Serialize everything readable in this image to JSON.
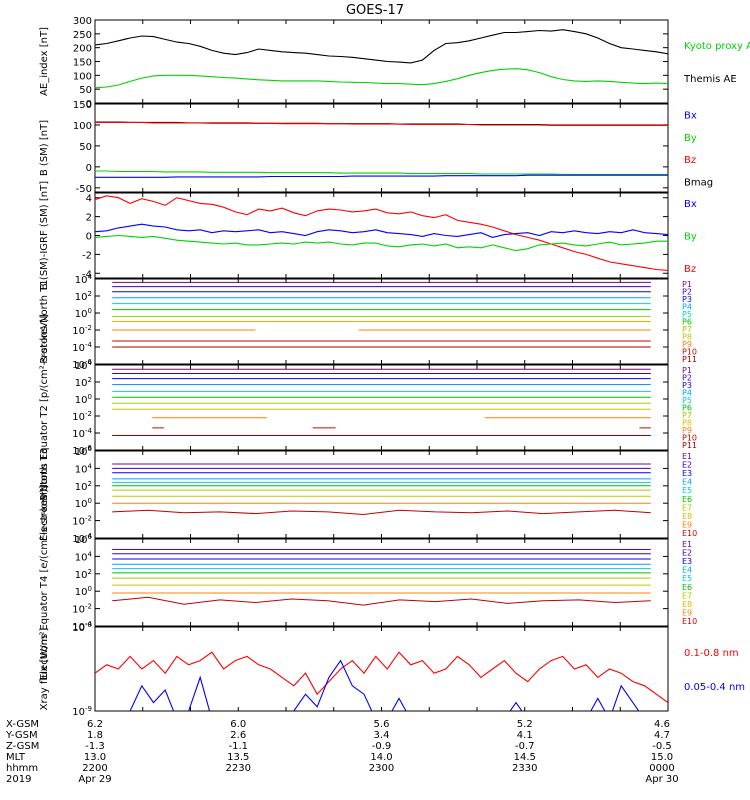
{
  "title": "GOES-17",
  "colors": {
    "black": "#000000",
    "green": "#00d400",
    "blue": "#0000ff",
    "red": "#ff0000",
    "ch": [
      "#000000",
      "#7f007f",
      "#3f00bf",
      "#0000ff",
      "#00a0ff",
      "#00d0d0",
      "#00c000",
      "#a0d000",
      "#d0c000",
      "#ff8000",
      "#d00000",
      "#a00000"
    ]
  },
  "chart_data": [
    {
      "type": "line",
      "id": "ae",
      "ylabel": "AE_index [nT]",
      "ylim": [
        0,
        300
      ],
      "yticks": [
        "300",
        "250",
        "200",
        "150",
        "100",
        "50",
        "0"
      ],
      "ytick_values": [
        300,
        250,
        200,
        150,
        100,
        50,
        0
      ],
      "legend": [
        "Kyoto proxy AE",
        "Themis AE"
      ],
      "series": [
        {
          "name": "Kyoto proxy AE",
          "color": "green",
          "values": [
            55,
            58,
            65,
            78,
            90,
            98,
            100,
            100,
            100,
            98,
            95,
            92,
            90,
            87,
            84,
            82,
            80,
            80,
            80,
            80,
            78,
            76,
            75,
            74,
            72,
            70,
            70,
            68,
            66,
            70,
            78,
            88,
            100,
            110,
            118,
            122,
            124,
            120,
            110,
            95,
            85,
            80,
            78,
            80,
            78,
            75,
            72,
            70,
            72,
            70
          ]
        },
        {
          "name": "Themis AE",
          "color": "black",
          "values": [
            210,
            215,
            225,
            235,
            242,
            240,
            230,
            220,
            215,
            205,
            190,
            180,
            175,
            182,
            195,
            190,
            185,
            182,
            180,
            175,
            170,
            168,
            165,
            160,
            155,
            150,
            148,
            145,
            155,
            190,
            215,
            218,
            225,
            235,
            245,
            255,
            255,
            258,
            262,
            260,
            265,
            258,
            250,
            235,
            215,
            200,
            195,
            190,
            185,
            178
          ]
        }
      ]
    },
    {
      "type": "line",
      "id": "bsm",
      "ylabel": "B (SM) [nT]",
      "ylim": [
        -60,
        150
      ],
      "yticks": [
        "150",
        "100",
        "50",
        "0",
        "-50"
      ],
      "ytick_values": [
        150,
        100,
        50,
        0,
        -50
      ],
      "legend": [
        "Bx",
        "By",
        "Bz",
        "Bmag"
      ],
      "series": [
        {
          "name": "Bmag",
          "color": "black",
          "values": [
            107,
            107,
            107,
            106,
            106,
            106,
            106,
            106,
            105,
            105,
            105,
            105,
            105,
            105,
            104,
            104,
            104,
            104,
            104,
            104,
            103,
            103,
            103,
            103,
            103,
            103,
            102,
            102,
            102,
            102,
            102,
            102,
            101,
            101,
            101,
            101,
            101,
            101,
            101,
            100,
            100,
            100,
            100,
            100,
            100,
            100,
            100,
            100,
            100,
            100
          ]
        },
        {
          "name": "Bz",
          "color": "red",
          "values": [
            106,
            106,
            106,
            106,
            106,
            105,
            105,
            105,
            105,
            105,
            104,
            104,
            104,
            104,
            104,
            104,
            103,
            103,
            103,
            103,
            103,
            103,
            102,
            102,
            102,
            102,
            102,
            101,
            101,
            101,
            101,
            101,
            101,
            100,
            100,
            100,
            100,
            100,
            100,
            99,
            99,
            99,
            99,
            99,
            99,
            99,
            99,
            99,
            99,
            99
          ]
        },
        {
          "name": "By",
          "color": "green",
          "values": [
            -10,
            -10,
            -11,
            -11,
            -11,
            -11,
            -12,
            -12,
            -12,
            -12,
            -13,
            -13,
            -13,
            -13,
            -13,
            -14,
            -14,
            -14,
            -14,
            -14,
            -14,
            -15,
            -15,
            -15,
            -15,
            -15,
            -15,
            -16,
            -16,
            -16,
            -16,
            -16,
            -16,
            -17,
            -17,
            -17,
            -17,
            -17,
            -17,
            -17,
            -18,
            -18,
            -18,
            -18,
            -18,
            -18,
            -18,
            -18,
            -18,
            -18
          ]
        },
        {
          "name": "Bx",
          "color": "blue",
          "values": [
            -25,
            -25,
            -25,
            -25,
            -25,
            -25,
            -25,
            -24,
            -24,
            -24,
            -24,
            -24,
            -24,
            -24,
            -24,
            -23,
            -23,
            -23,
            -23,
            -23,
            -23,
            -23,
            -22,
            -22,
            -22,
            -22,
            -22,
            -22,
            -22,
            -22,
            -21,
            -21,
            -21,
            -21,
            -21,
            -21,
            -21,
            -20,
            -20,
            -20,
            -20,
            -20,
            -20,
            -20,
            -20,
            -20,
            -20,
            -20,
            -20,
            -20
          ]
        }
      ]
    },
    {
      "type": "line",
      "id": "bigrf",
      "ylabel": "B (SM)-IGRF (SM) [nT]",
      "ylim": [
        -4.5,
        4.5
      ],
      "yticks": [
        "4",
        "2",
        "0",
        "-2",
        "-4"
      ],
      "ytick_values": [
        4,
        2,
        0,
        -2,
        -4
      ],
      "legend": [
        "Bx",
        "By",
        "Bz"
      ],
      "series": [
        {
          "name": "Bz",
          "color": "red",
          "values": [
            3.8,
            4.2,
            4.0,
            3.4,
            3.9,
            3.6,
            3.2,
            4.0,
            3.7,
            3.4,
            3.3,
            3.0,
            2.5,
            2.2,
            2.8,
            2.6,
            2.9,
            2.4,
            2.1,
            2.6,
            2.8,
            2.7,
            2.5,
            2.6,
            2.8,
            2.4,
            2.3,
            2.5,
            2.1,
            1.9,
            2.2,
            1.6,
            1.4,
            1.2,
            0.9,
            0.5,
            0.1,
            -0.2,
            -0.5,
            -0.9,
            -1.3,
            -1.7,
            -2.0,
            -2.4,
            -2.8,
            -3.0,
            -3.2,
            -3.4,
            -3.6,
            -3.7
          ]
        },
        {
          "name": "Bx",
          "color": "blue",
          "values": [
            0.4,
            0.5,
            0.8,
            1.0,
            1.2,
            1.0,
            0.9,
            0.6,
            0.5,
            0.6,
            0.3,
            0.5,
            0.4,
            0.5,
            0.6,
            0.3,
            0.4,
            0.2,
            0.0,
            0.4,
            0.6,
            0.5,
            0.3,
            0.4,
            0.6,
            0.3,
            0.2,
            0.1,
            -0.1,
            0.2,
            0.0,
            -0.1,
            0.1,
            0.3,
            -0.2,
            0.1,
            0.2,
            0.3,
            0.0,
            0.4,
            0.3,
            0.5,
            0.3,
            0.2,
            0.4,
            0.3,
            0.6,
            0.3,
            0.2,
            0.1
          ]
        },
        {
          "name": "By",
          "color": "green",
          "values": [
            -0.2,
            -0.1,
            0.0,
            -0.1,
            -0.2,
            -0.1,
            -0.3,
            -0.5,
            -0.6,
            -0.7,
            -0.8,
            -0.9,
            -0.8,
            -1.0,
            -1.0,
            -0.9,
            -0.8,
            -0.9,
            -0.7,
            -0.8,
            -0.7,
            -0.9,
            -1.0,
            -0.8,
            -0.8,
            -1.1,
            -1.2,
            -1.0,
            -0.9,
            -1.1,
            -0.9,
            -1.3,
            -1.2,
            -1.3,
            -1.0,
            -1.3,
            -1.6,
            -1.4,
            -1.0,
            -0.9,
            -0.8,
            -1.0,
            -1.1,
            -0.9,
            -0.7,
            -1.0,
            -0.9,
            -0.8,
            -0.6,
            -0.6
          ]
        }
      ]
    },
    {
      "type": "line",
      "id": "p1",
      "ylabel": "Protons North T1",
      "log": true,
      "ylim": [
        -6,
        4
      ],
      "yticks": [
        "10^4",
        "10^2",
        "10^0",
        "10^-2",
        "10^-4",
        "10^-6"
      ],
      "ytick_values": [
        4,
        2,
        0,
        -2,
        -4,
        -6
      ],
      "legend": [
        "P1",
        "P2",
        "P3",
        "P4",
        "P5",
        "P6",
        "P7",
        "P8",
        "P9",
        "P10",
        "P11"
      ],
      "levels": [
        3.6,
        3.1,
        2.5,
        1.8,
        1.1,
        0.4,
        -0.4,
        -1.0,
        -2.0,
        -3.3,
        -4.0
      ],
      "gaps": {
        "8": [
          [
            0.28,
            0.46
          ]
        ]
      }
    },
    {
      "type": "line",
      "id": "p2",
      "ylabel": "Protons Equator T2 [p/(cm²-s-sr-keV)]",
      "log": true,
      "ylim": [
        -6,
        4
      ],
      "yticks": [
        "10^4",
        "10^2",
        "10^0",
        "10^-2",
        "10^-4",
        "10^-6"
      ],
      "ytick_values": [
        4,
        2,
        0,
        -2,
        -4,
        -6
      ],
      "legend": [
        "P1",
        "P2",
        "P3",
        "P4",
        "P5",
        "P6",
        "P7",
        "P8",
        "P9",
        "P10",
        "P11"
      ],
      "levels": [
        3.5,
        3.0,
        2.4,
        1.7,
        0.9,
        0.2,
        -0.5,
        -1.2,
        -2.2,
        -3.4,
        -4.3
      ],
      "gaps": {
        "8": [
          [
            0.0,
            0.1
          ],
          [
            0.3,
            0.68
          ]
        ],
        "9": [
          [
            0.0,
            0.1
          ],
          [
            0.12,
            0.38
          ],
          [
            0.42,
            0.95
          ]
        ]
      }
    },
    {
      "type": "line",
      "id": "e1",
      "ylabel": "Electrons North T3",
      "log": true,
      "ylim": [
        -4,
        6
      ],
      "yticks": [
        "10^6",
        "10^4",
        "10^2",
        "10^0",
        "10^-2",
        "10^-4"
      ],
      "ytick_values": [
        6,
        4,
        2,
        0,
        -2,
        -4
      ],
      "legend": [
        "E1",
        "E2",
        "E3",
        "E4",
        "E5",
        "E6",
        "E7",
        "E8",
        "E9",
        "E10"
      ],
      "levels": [
        4.5,
        4.0,
        3.5,
        2.8,
        2.4,
        2.0,
        1.5,
        0.8,
        0.0,
        -1.0
      ],
      "noisy_last": [
        -1.0,
        -0.8,
        -1.1,
        -1.0,
        -1.2,
        -0.9,
        -1.0,
        -1.3,
        -0.8,
        -1.0,
        -1.1,
        -0.9,
        -1.2,
        -1.0,
        -0.8,
        -1.1
      ]
    },
    {
      "type": "line",
      "id": "e2",
      "ylabel": "Electrons Equator T4 [e/(cm²-s-sr-keV)]",
      "log": true,
      "ylim": [
        -4,
        6
      ],
      "yticks": [
        "10^6",
        "10^4",
        "10^2",
        "10^0",
        "10^-2",
        "10^-4"
      ],
      "ytick_values": [
        6,
        4,
        2,
        0,
        -2,
        -4
      ],
      "legend": [
        "E1",
        "E2",
        "E3",
        "E4",
        "E5",
        "E6",
        "E7",
        "E8",
        "E9",
        "E10"
      ],
      "levels": [
        4.8,
        4.3,
        3.7,
        3.1,
        2.6,
        2.1,
        1.5,
        0.7,
        -0.2,
        -1.1
      ],
      "noisy_last": [
        -1.0,
        -0.6,
        -1.4,
        -0.9,
        -1.2,
        -0.8,
        -1.0,
        -1.5,
        -0.9,
        -1.1,
        -0.8,
        -1.3,
        -1.0,
        -0.9,
        -1.2,
        -1.0
      ]
    },
    {
      "type": "line",
      "id": "xray",
      "ylabel": "Xray flux [W/m²]",
      "log": true,
      "ylim": [
        -9,
        -8
      ],
      "yticks": [
        "10^-8",
        "10^-9"
      ],
      "ytick_values": [
        -8,
        -9
      ],
      "legend": [
        "0.1-0.8 nm",
        "0.05-0.4 nm"
      ],
      "series": [
        {
          "name": "0.1-0.8 nm",
          "color": "red",
          "values": [
            -8.55,
            -8.45,
            -8.5,
            -8.35,
            -8.5,
            -8.4,
            -8.55,
            -8.35,
            -8.45,
            -8.4,
            -8.3,
            -8.5,
            -8.4,
            -8.35,
            -8.45,
            -8.5,
            -8.6,
            -8.7,
            -8.55,
            -8.8,
            -8.65,
            -8.5,
            -8.4,
            -8.55,
            -8.35,
            -8.5,
            -8.3,
            -8.45,
            -8.4,
            -8.55,
            -8.5,
            -8.35,
            -8.45,
            -8.6,
            -8.5,
            -8.4,
            -8.55,
            -8.65,
            -8.5,
            -8.4,
            -8.35,
            -8.5,
            -8.45,
            -8.6,
            -8.5,
            -8.55,
            -8.65,
            -8.7,
            -8.8,
            -8.9
          ]
        },
        {
          "name": "0.05-0.4 nm",
          "color": "blue",
          "values": [
            -9.1,
            -9.1,
            -9.1,
            -9.0,
            -8.7,
            -8.9,
            -8.75,
            -9.1,
            -9.0,
            -8.6,
            -9.1,
            -9.1,
            -9.1,
            -9.1,
            -9.1,
            -9.1,
            -9.1,
            -9.0,
            -8.8,
            -8.95,
            -8.6,
            -8.4,
            -8.7,
            -8.8,
            -9.1,
            -9.1,
            -8.85,
            -9.1,
            -9.1,
            -9.1,
            -9.1,
            -9.1,
            -9.1,
            -9.1,
            -9.1,
            -9.1,
            -8.9,
            -9.1,
            -9.1,
            -9.1,
            -9.1,
            -9.1,
            -9.1,
            -8.85,
            -9.1,
            -8.7,
            -8.9,
            -9.1,
            -9.1,
            -9.1
          ]
        }
      ]
    }
  ],
  "footer": {
    "rows": [
      {
        "label": "X-GSM",
        "values": [
          "6.2",
          "6.0",
          "5.6",
          "5.2",
          "4.6"
        ]
      },
      {
        "label": "Y-GSM",
        "values": [
          "1.8",
          "2.6",
          "3.4",
          "4.1",
          "4.7"
        ]
      },
      {
        "label": "Z-GSM",
        "values": [
          "-1.3",
          "-1.1",
          "-0.9",
          "-0.7",
          "-0.5"
        ]
      },
      {
        "label": "MLT",
        "values": [
          "13.0",
          "13.5",
          "14.0",
          "14.5",
          "15.0"
        ]
      },
      {
        "label": "hhmm",
        "values": [
          "2200",
          "2230",
          "2300",
          "2330",
          "0000"
        ]
      },
      {
        "label": "2019",
        "values": [
          "Apr 29",
          "",
          "",
          "",
          "Apr 30"
        ]
      }
    ]
  }
}
